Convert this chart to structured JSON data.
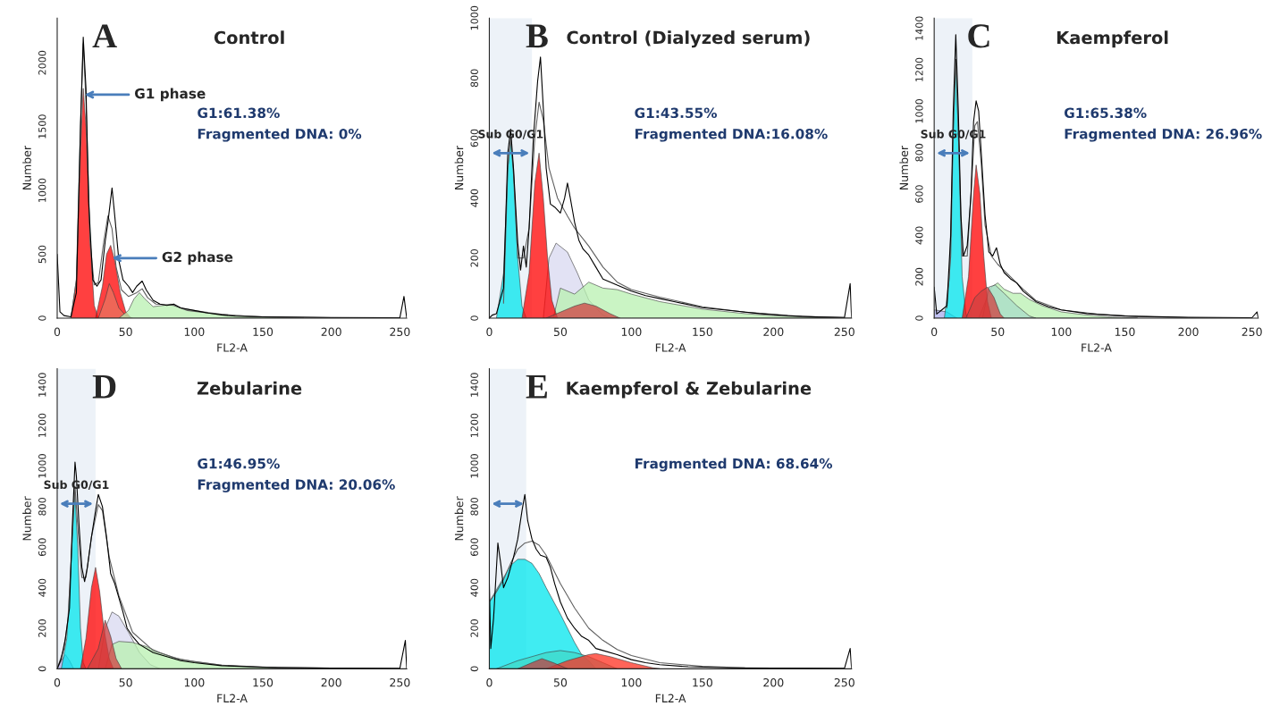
{
  "chart_data": [
    {
      "type": "line",
      "title": "Control",
      "xlabel": "FL2-A",
      "ylabel": "Number",
      "xlim": [
        0,
        255
      ],
      "xticks": [
        0,
        50,
        100,
        150,
        200,
        250
      ],
      "ylim": [
        0,
        2350
      ],
      "yticks": [
        0,
        500,
        1000,
        1500,
        2000
      ],
      "grid": false,
      "legend": false,
      "annotations": [
        "A",
        {
          "text": "G1 phase",
          "x": 20,
          "y": 1750
        },
        {
          "text": "G2 phase",
          "x": 40,
          "y": 470
        },
        "G1:61.38%",
        "Fragmented DNA: 0%"
      ],
      "series": [
        {
          "type": "area",
          "color": "#ff0000",
          "x": [
            10,
            14,
            17,
            19,
            21,
            24,
            27,
            30
          ],
          "values": [
            0,
            300,
            1300,
            1800,
            1500,
            600,
            100,
            0
          ]
        },
        {
          "type": "area",
          "color": "#ff0000",
          "x": [
            28,
            33,
            36,
            39,
            42,
            46,
            50,
            54
          ],
          "values": [
            0,
            250,
            500,
            570,
            450,
            200,
            50,
            0
          ]
        },
        {
          "type": "area",
          "color": "#e8735f",
          "x": [
            30,
            35,
            38,
            41,
            45,
            50,
            55
          ],
          "values": [
            0,
            150,
            270,
            200,
            80,
            20,
            0
          ]
        },
        {
          "type": "area",
          "color": "#b8f0b0",
          "x": [
            45,
            52,
            56,
            60,
            64,
            70,
            78,
            83,
            90,
            100,
            120,
            140,
            160,
            180
          ],
          "values": [
            0,
            60,
            150,
            200,
            150,
            90,
            100,
            110,
            80,
            60,
            30,
            15,
            5,
            0
          ]
        },
        {
          "type": "line",
          "color": "#606060",
          "x": [
            10,
            14,
            17,
            19,
            21,
            24,
            27,
            30,
            34,
            37,
            40,
            43,
            47,
            52,
            58,
            62,
            66,
            72,
            80,
            85,
            95,
            110,
            130,
            150,
            200,
            250
          ],
          "values": [
            0,
            300,
            1500,
            2150,
            1700,
            600,
            260,
            280,
            600,
            800,
            700,
            400,
            220,
            170,
            200,
            230,
            160,
            110,
            105,
            100,
            60,
            40,
            20,
            10,
            3,
            0
          ]
        },
        {
          "type": "line",
          "color": "#000000",
          "x": [
            0,
            2,
            5,
            10,
            14,
            17,
            19,
            21,
            23,
            26,
            29,
            32,
            35,
            37,
            40,
            42,
            45,
            48,
            52,
            55,
            58,
            62,
            65,
            70,
            75,
            80,
            85,
            90,
            100,
            110,
            120,
            130,
            150,
            200,
            250,
            253,
            255
          ],
          "values": [
            500,
            50,
            20,
            10,
            200,
            1500,
            2200,
            1800,
            900,
            300,
            250,
            300,
            600,
            750,
            1020,
            800,
            450,
            300,
            250,
            200,
            250,
            290,
            220,
            140,
            110,
            100,
            110,
            80,
            60,
            40,
            25,
            15,
            10,
            5,
            3,
            170,
            0
          ]
        }
      ]
    },
    {
      "type": "line",
      "title": "Control (Dialyzed serum)",
      "xlabel": "FL2-A",
      "ylabel": "Number",
      "xlim": [
        0,
        255
      ],
      "xticks": [
        0,
        50,
        100,
        150,
        200,
        250
      ],
      "ylim": [
        0,
        1000
      ],
      "yticks": [
        0,
        200,
        400,
        600,
        800,
        1000
      ],
      "grid": false,
      "legend": false,
      "annotations": [
        "B",
        "G1:43.55%",
        "Fragmented DNA:16.08%"
      ],
      "bands": [
        {
          "axis": "x",
          "from": 0,
          "to": 30,
          "label": "Sub G0/G1",
          "color": "#4a7ebb"
        }
      ],
      "series": [
        {
          "type": "area",
          "color": "#00e5ee",
          "x": [
            5,
            10,
            13,
            15,
            17,
            20,
            23,
            26
          ],
          "values": [
            0,
            150,
            500,
            590,
            500,
            200,
            40,
            0
          ]
        },
        {
          "type": "area",
          "color": "#d8d8f0",
          "x": [
            38,
            42,
            47,
            55,
            62,
            70,
            80,
            85
          ],
          "values": [
            0,
            200,
            250,
            220,
            150,
            60,
            10,
            0
          ]
        },
        {
          "type": "area",
          "color": "#b8f0b0",
          "x": [
            45,
            50,
            60,
            70,
            80,
            90,
            100,
            120,
            150,
            180,
            200,
            230,
            255
          ],
          "values": [
            0,
            100,
            80,
            120,
            100,
            95,
            80,
            55,
            30,
            15,
            8,
            2,
            0
          ]
        },
        {
          "type": "area",
          "color": "#ff0000",
          "x": [
            23,
            28,
            32,
            35,
            38,
            41,
            44,
            48
          ],
          "values": [
            0,
            150,
            450,
            550,
            400,
            200,
            60,
            0
          ]
        },
        {
          "type": "area",
          "color": "#d04040",
          "x": [
            40,
            50,
            60,
            67,
            75,
            85,
            92
          ],
          "values": [
            0,
            20,
            40,
            50,
            40,
            15,
            0
          ]
        },
        {
          "type": "line",
          "color": "#606060",
          "x": [
            10,
            13,
            15,
            17,
            20,
            24,
            28,
            32,
            35,
            38,
            42,
            48,
            55,
            60,
            70,
            80,
            90,
            100,
            120,
            150,
            180,
            220,
            250
          ],
          "values": [
            50,
            500,
            600,
            480,
            200,
            200,
            300,
            600,
            720,
            660,
            500,
            400,
            340,
            300,
            240,
            170,
            120,
            95,
            70,
            38,
            20,
            6,
            2
          ]
        },
        {
          "type": "line",
          "color": "#000000",
          "x": [
            0,
            2,
            5,
            10,
            13,
            15,
            17,
            20,
            22,
            24,
            26,
            28,
            31,
            34,
            36,
            38,
            40,
            43,
            46,
            50,
            53,
            55,
            57,
            60,
            63,
            66,
            70,
            75,
            80,
            90,
            100,
            110,
            120,
            130,
            150,
            170,
            190,
            210,
            230,
            250,
            254,
            255
          ],
          "values": [
            0,
            10,
            15,
            100,
            550,
            630,
            500,
            250,
            160,
            240,
            170,
            300,
            600,
            790,
            870,
            700,
            500,
            380,
            370,
            350,
            400,
            450,
            400,
            320,
            260,
            230,
            210,
            170,
            130,
            110,
            90,
            75,
            65,
            55,
            35,
            25,
            15,
            8,
            4,
            2,
            115,
            0
          ]
        }
      ]
    },
    {
      "type": "line",
      "title": "Kaempferol",
      "xlabel": "FL2-A",
      "ylabel": "Number",
      "xlim": [
        0,
        255
      ],
      "xticks": [
        0,
        50,
        100,
        150,
        200,
        250
      ],
      "ylim": [
        0,
        1450
      ],
      "yticks": [
        0,
        200,
        400,
        600,
        800,
        1000,
        1200,
        1400
      ],
      "grid": false,
      "legend": false,
      "annotations": [
        "C",
        "G1:65.38%",
        "Fragmented DNA: 26.96%"
      ],
      "bands": [
        {
          "axis": "x",
          "from": 0,
          "to": 30,
          "label": "Sub G0/G1",
          "color": "#4a7ebb"
        }
      ],
      "series": [
        {
          "type": "area",
          "color": "#b0b0f0",
          "x": [
            0,
            5,
            10,
            15,
            18
          ],
          "values": [
            40,
            35,
            30,
            10,
            0
          ]
        },
        {
          "type": "area",
          "color": "#00e5ee",
          "x": [
            8,
            12,
            15,
            17,
            19,
            22,
            25,
            27
          ],
          "values": [
            0,
            200,
            900,
            1250,
            900,
            200,
            20,
            0
          ]
        },
        {
          "type": "area",
          "color": "#b8f0b0",
          "x": [
            35,
            45,
            50,
            55,
            62,
            68,
            75,
            85,
            100,
            120,
            140,
            160
          ],
          "values": [
            0,
            150,
            170,
            140,
            120,
            120,
            90,
            60,
            30,
            15,
            5,
            0
          ]
        },
        {
          "type": "area",
          "color": "#a8dcc8",
          "x": [
            38,
            43,
            48,
            55,
            65,
            75,
            80
          ],
          "values": [
            0,
            150,
            160,
            120,
            60,
            10,
            0
          ]
        },
        {
          "type": "area",
          "color": "#ff0000",
          "x": [
            22,
            27,
            31,
            33,
            36,
            39,
            42,
            45
          ],
          "values": [
            0,
            200,
            600,
            740,
            600,
            300,
            80,
            0
          ]
        },
        {
          "type": "area",
          "color": "#d04040",
          "x": [
            25,
            32,
            37,
            42,
            47,
            52,
            55
          ],
          "values": [
            0,
            100,
            130,
            150,
            100,
            20,
            0
          ]
        },
        {
          "type": "line",
          "color": "#606060",
          "x": [
            10,
            13,
            15,
            17,
            19,
            22,
            26,
            29,
            32,
            34,
            37,
            40,
            45,
            50,
            55,
            60,
            70,
            80,
            100,
            130,
            160,
            200,
            250
          ],
          "values": [
            50,
            300,
            900,
            1250,
            900,
            300,
            300,
            600,
            930,
            950,
            750,
            450,
            300,
            260,
            230,
            200,
            140,
            85,
            40,
            18,
            8,
            2,
            0
          ]
        },
        {
          "type": "line",
          "color": "#000000",
          "x": [
            0,
            2,
            6,
            10,
            13,
            15,
            17,
            19,
            21,
            23,
            26,
            29,
            31,
            33,
            35,
            37,
            40,
            43,
            46,
            49,
            52,
            55,
            60,
            65,
            70,
            80,
            90,
            100,
            120,
            150,
            200,
            250,
            254,
            255
          ],
          "values": [
            150,
            20,
            40,
            60,
            400,
            1000,
            1370,
            1000,
            500,
            300,
            350,
            600,
            950,
            1050,
            1000,
            800,
            500,
            320,
            300,
            340,
            260,
            220,
            190,
            170,
            130,
            80,
            55,
            40,
            22,
            10,
            4,
            2,
            30,
            0
          ]
        }
      ]
    },
    {
      "type": "line",
      "title": "Zebularine",
      "xlabel": "FL2-A",
      "ylabel": "Number",
      "xlim": [
        0,
        255
      ],
      "xticks": [
        0,
        50,
        100,
        150,
        200,
        250
      ],
      "ylim": [
        0,
        1480
      ],
      "yticks": [
        0,
        200,
        400,
        600,
        800,
        1000,
        1200,
        1400
      ],
      "grid": false,
      "legend": false,
      "annotations": [
        "D",
        "G1:46.95%",
        "Fragmented DNA: 20.06%"
      ],
      "bands": [
        {
          "axis": "x",
          "from": 0,
          "to": 28,
          "label": "Sub G0/G1",
          "color": "#4a7ebb"
        }
      ],
      "series": [
        {
          "type": "area",
          "color": "#b0b0f0",
          "x": [
            0,
            3,
            6,
            9,
            12
          ],
          "values": [
            0,
            40,
            70,
            40,
            0
          ]
        },
        {
          "type": "area",
          "color": "#00e5ee",
          "x": [
            3,
            7,
            10,
            12,
            13,
            15,
            17,
            19,
            21
          ],
          "values": [
            0,
            150,
            500,
            800,
            860,
            600,
            200,
            30,
            0
          ]
        },
        {
          "type": "area",
          "color": "#d8d8f0",
          "x": [
            30,
            35,
            40,
            45,
            52,
            60,
            68,
            75
          ],
          "values": [
            0,
            200,
            280,
            260,
            180,
            80,
            20,
            0
          ]
        },
        {
          "type": "area",
          "color": "#b8f0b0",
          "x": [
            35,
            40,
            45,
            55,
            65,
            75,
            85,
            100,
            120,
            150,
            180
          ],
          "values": [
            0,
            120,
            135,
            130,
            110,
            80,
            55,
            35,
            18,
            6,
            0
          ]
        },
        {
          "type": "area",
          "color": "#ff0000",
          "x": [
            17,
            21,
            25,
            28,
            31,
            34,
            38,
            41
          ],
          "values": [
            0,
            150,
            400,
            500,
            380,
            200,
            50,
            0
          ]
        },
        {
          "type": "area",
          "color": "#d04040",
          "x": [
            22,
            30,
            35,
            39,
            43,
            47
          ],
          "values": [
            0,
            100,
            240,
            160,
            50,
            0
          ]
        },
        {
          "type": "line",
          "color": "#606060",
          "x": [
            0,
            5,
            8,
            11,
            13,
            15,
            18,
            21,
            25,
            30,
            33,
            38,
            45,
            55,
            70,
            90,
            120,
            160,
            250
          ],
          "values": [
            0,
            100,
            250,
            650,
            900,
            700,
            450,
            450,
            650,
            810,
            780,
            550,
            360,
            180,
            90,
            45,
            18,
            6,
            0
          ]
        },
        {
          "type": "line",
          "color": "#000000",
          "x": [
            0,
            3,
            6,
            9,
            11,
            13,
            14,
            16,
            18,
            20,
            22,
            25,
            28,
            30,
            33,
            36,
            39,
            42,
            45,
            48,
            51,
            55,
            60,
            70,
            80,
            90,
            100,
            120,
            150,
            200,
            250,
            254,
            255
          ],
          "values": [
            0,
            50,
            150,
            300,
            700,
            1020,
            950,
            700,
            500,
            430,
            500,
            650,
            780,
            860,
            800,
            650,
            470,
            420,
            350,
            280,
            200,
            160,
            120,
            80,
            60,
            40,
            30,
            15,
            8,
            3,
            2,
            140,
            0
          ]
        }
      ]
    },
    {
      "type": "line",
      "title": "Kaempferol & Zebularine",
      "xlabel": "FL2-A",
      "ylabel": "Number",
      "xlim": [
        0,
        255
      ],
      "xticks": [
        0,
        50,
        100,
        150,
        200,
        250
      ],
      "ylim": [
        0,
        1480
      ],
      "yticks": [
        0,
        200,
        400,
        600,
        800,
        1000,
        1200,
        1400
      ],
      "grid": false,
      "legend": false,
      "annotations": [
        "E",
        "Fragmented DNA: 68.64%"
      ],
      "bands": [
        {
          "axis": "x",
          "from": 0,
          "to": 26,
          "label": null,
          "color": "#4a7ebb"
        }
      ],
      "series": [
        {
          "type": "area",
          "color": "#00e5ee",
          "x": [
            0,
            5,
            10,
            15,
            20,
            25,
            30,
            35,
            40,
            50,
            60,
            65,
            70,
            75
          ],
          "values": [
            330,
            390,
            450,
            510,
            540,
            540,
            520,
            470,
            400,
            270,
            130,
            70,
            40,
            0
          ]
        },
        {
          "type": "area",
          "color": "#40d8c8",
          "x": [
            5,
            20,
            40,
            50,
            60,
            70,
            80,
            90
          ],
          "values": [
            0,
            40,
            80,
            90,
            80,
            60,
            30,
            0
          ]
        },
        {
          "type": "area",
          "color": "#ff3020",
          "x": [
            40,
            55,
            70,
            75,
            85,
            100,
            115,
            120
          ],
          "values": [
            0,
            40,
            70,
            75,
            60,
            30,
            5,
            0
          ]
        },
        {
          "type": "area",
          "color": "#c04040",
          "x": [
            20,
            30,
            37,
            45,
            55
          ],
          "values": [
            0,
            30,
            50,
            30,
            0
          ]
        },
        {
          "type": "line",
          "color": "#606060",
          "x": [
            0,
            5,
            10,
            15,
            20,
            25,
            30,
            35,
            40,
            50,
            60,
            70,
            80,
            90,
            100,
            120,
            150,
            180,
            220,
            250
          ],
          "values": [
            330,
            380,
            440,
            520,
            590,
            620,
            630,
            610,
            560,
            420,
            300,
            200,
            140,
            95,
            65,
            30,
            12,
            5,
            2,
            0
          ]
        },
        {
          "type": "line",
          "color": "#000000",
          "x": [
            0,
            1,
            3,
            6,
            8,
            10,
            13,
            17,
            20,
            23,
            25,
            27,
            30,
            33,
            36,
            40,
            43,
            46,
            50,
            55,
            60,
            65,
            70,
            75,
            80,
            90,
            100,
            110,
            120,
            140,
            170,
            200,
            250,
            254,
            255
          ],
          "values": [
            420,
            100,
            250,
            620,
            520,
            400,
            450,
            550,
            640,
            780,
            860,
            730,
            640,
            590,
            560,
            550,
            500,
            420,
            330,
            250,
            200,
            160,
            140,
            100,
            90,
            70,
            45,
            30,
            20,
            10,
            5,
            3,
            2,
            100,
            0
          ]
        }
      ]
    }
  ]
}
